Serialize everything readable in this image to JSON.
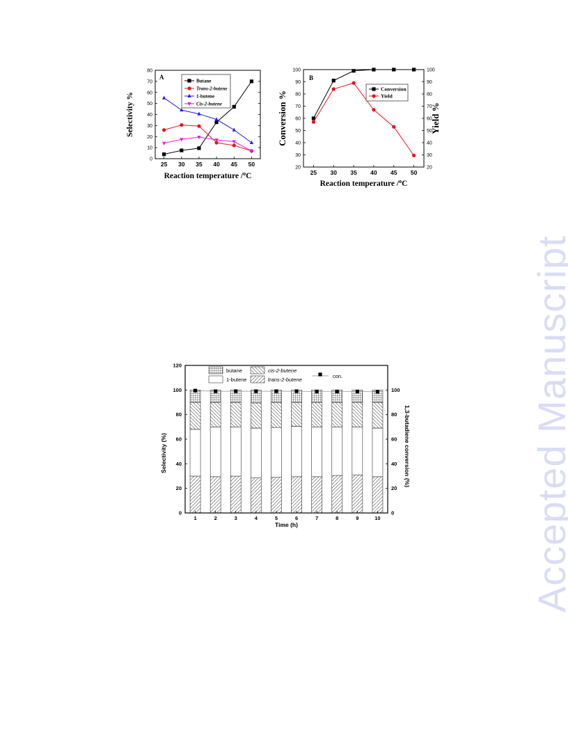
{
  "watermark": "Accepted Manuscript",
  "colors": {
    "black": "#000000",
    "red": "#e8141c",
    "blue": "#1f1fe8",
    "magenta": "#e81ae8",
    "watermark": "#d9dcf5"
  },
  "chart_data": [
    {
      "id": "A",
      "type": "line",
      "panel_label": "A",
      "xlabel": "Reaction temperature /",
      "xlabel_sup": "o",
      "xlabel_unit": "C",
      "ylabel": "Selectivity  %",
      "x": [
        25,
        30,
        35,
        40,
        45,
        50
      ],
      "xlim": [
        25,
        50
      ],
      "ylim": [
        0,
        80
      ],
      "yticks": [
        0,
        10,
        20,
        30,
        40,
        50,
        60,
        70,
        80
      ],
      "legend_position": "top-center",
      "series": [
        {
          "name": "Butane",
          "color": "#000000",
          "marker": "square",
          "values": [
            4,
            7.5,
            9.5,
            33,
            47,
            70
          ]
        },
        {
          "name": "Trans-2-butene",
          "color": "#e8141c",
          "marker": "circle",
          "values": [
            26,
            30.5,
            29.5,
            14.5,
            12,
            7
          ]
        },
        {
          "name": "1-butene",
          "color": "#1f1fe8",
          "marker": "triangle",
          "values": [
            55,
            44,
            40.5,
            35.5,
            26,
            14.5
          ]
        },
        {
          "name": "Cis-2-butene",
          "color": "#e81ae8",
          "marker": "triangle-down",
          "values": [
            14,
            17.5,
            19.5,
            17,
            15.5,
            7
          ]
        }
      ]
    },
    {
      "id": "B",
      "type": "line",
      "panel_label": "B",
      "xlabel": "Reaction temperature /",
      "xlabel_sup": "o",
      "xlabel_unit": "C",
      "ylabel_left": "Conversion  %",
      "ylabel_right": "Yield  %",
      "x": [
        25,
        30,
        35,
        40,
        45,
        50
      ],
      "xlim": [
        25,
        50
      ],
      "ylim": [
        20,
        100
      ],
      "yticks": [
        20,
        30,
        40,
        50,
        60,
        70,
        80,
        90,
        100
      ],
      "legend_position": "top-right",
      "series": [
        {
          "name": "Conversion",
          "color": "#000000",
          "marker": "square",
          "axis": "left",
          "values": [
            60,
            91,
            99,
            100,
            100,
            100
          ]
        },
        {
          "name": "Yield",
          "color": "#e8141c",
          "marker": "circle",
          "axis": "right",
          "values": [
            57,
            84,
            89,
            67,
            53,
            29.5
          ]
        }
      ]
    },
    {
      "id": "C",
      "type": "bar",
      "stacked": true,
      "xlabel": "Time (h)",
      "ylabel_left": "Selectivity (%)",
      "ylabel_right": "1,3-butadiene conversion (%)",
      "categories": [
        "1",
        "2",
        "3",
        "4",
        "5",
        "6",
        "7",
        "8",
        "9",
        "10"
      ],
      "ylim_left": [
        0,
        120
      ],
      "yticks_left": [
        0,
        20,
        40,
        60,
        80,
        100,
        120
      ],
      "ylim_right": [
        0,
        100
      ],
      "yticks_right": [
        0,
        20,
        40,
        60,
        80,
        100
      ],
      "legend_position": "top",
      "series": [
        {
          "name": "trans-2-butene",
          "pattern": "hatch-right",
          "values": [
            30,
            29.5,
            30,
            28.5,
            29,
            29.5,
            29.5,
            30.5,
            31,
            29.5
          ]
        },
        {
          "name": "1-butene",
          "pattern": "blank",
          "values": [
            38,
            40.5,
            40,
            40.5,
            40.5,
            41,
            40.5,
            39.5,
            39,
            39.5
          ]
        },
        {
          "name": "cis-2-butene",
          "pattern": "hatch-left",
          "values": [
            22,
            20,
            20,
            20.5,
            20.5,
            19.5,
            20,
            20,
            20,
            21
          ]
        },
        {
          "name": "butane",
          "pattern": "grid",
          "values": [
            10,
            10,
            10,
            10.5,
            10,
            10,
            10,
            10,
            10,
            10
          ]
        }
      ],
      "conversion": {
        "name": "con.",
        "axis": "right",
        "marker": "square",
        "values": [
          99.5,
          99,
          99,
          99,
          99,
          99,
          98.8,
          98.8,
          98.8,
          98.5
        ]
      }
    }
  ]
}
